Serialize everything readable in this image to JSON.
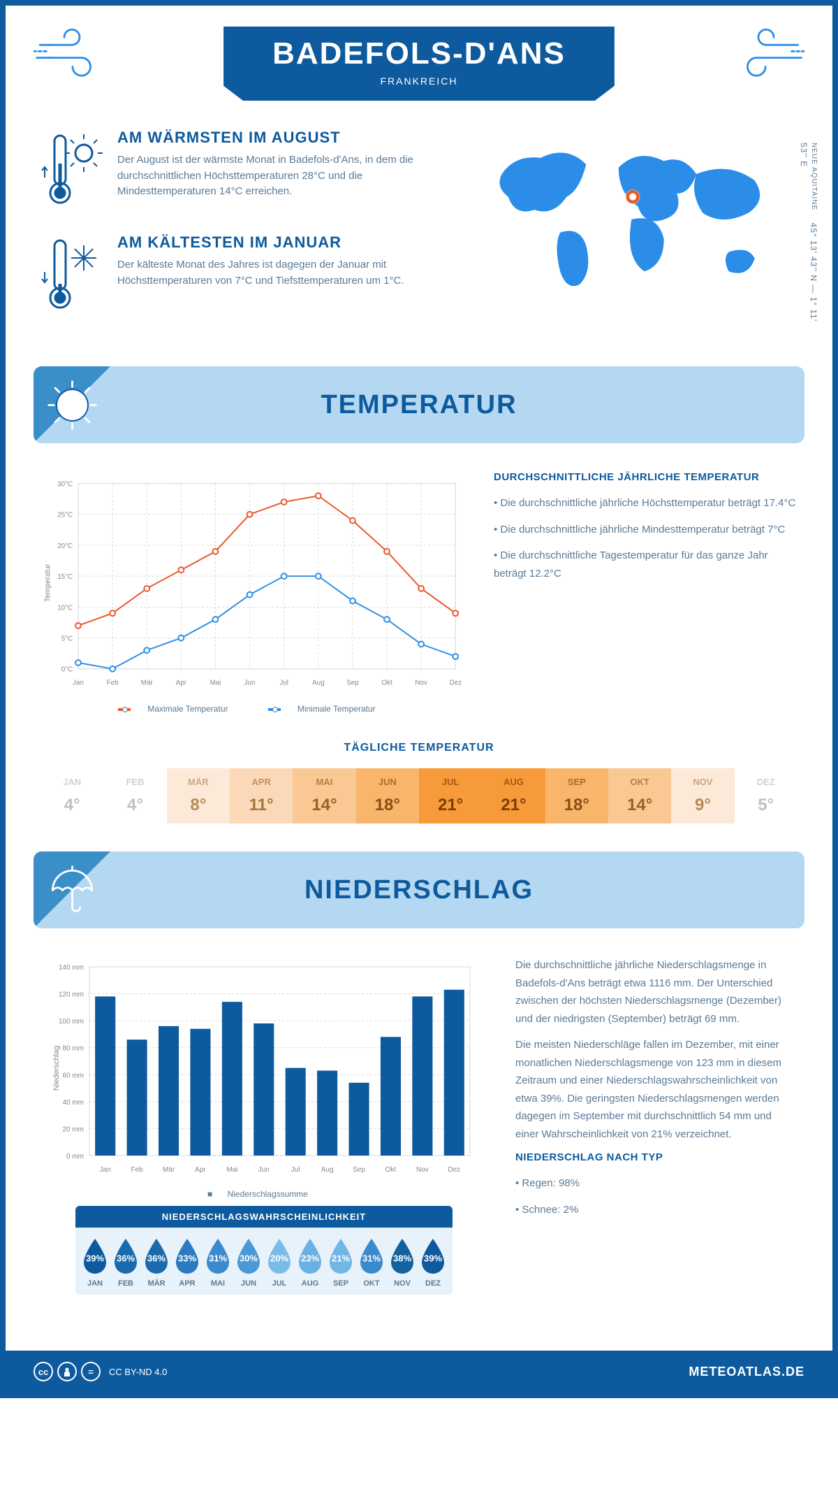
{
  "header": {
    "title": "BADEFOLS-D'ANS",
    "subtitle": "FRANKREICH"
  },
  "coords": {
    "lat": "45° 13' 43'' N — 1° 11' 53'' E",
    "region": "NEUE AQUITAINE"
  },
  "warmest": {
    "title": "AM WÄRMSTEN IM AUGUST",
    "text": "Der August ist der wärmste Monat in Badefols-d'Ans, in dem die durchschnittlichen Höchsttemperaturen 28°C und die Mindesttemperaturen 14°C erreichen."
  },
  "coldest": {
    "title": "AM KÄLTESTEN IM JANUAR",
    "text": "Der kälteste Monat des Jahres ist dagegen der Januar mit Höchsttemperaturen von 7°C und Tiefsttemperaturen um 1°C."
  },
  "temperature_section": {
    "title": "TEMPERATUR",
    "side_title": "DURCHSCHNITTLICHE JÄHRLICHE TEMPERATUR",
    "bullets": [
      "• Die durchschnittliche jährliche Höchsttemperatur beträgt 17.4°C",
      "• Die durchschnittliche jährliche Mindesttemperatur beträgt 7°C",
      "• Die durchschnittliche Tagestemperatur für das ganze Jahr beträgt 12.2°C"
    ],
    "chart": {
      "type": "line",
      "months": [
        "Jan",
        "Feb",
        "Mär",
        "Apr",
        "Mai",
        "Jun",
        "Jul",
        "Aug",
        "Sep",
        "Okt",
        "Nov",
        "Dez"
      ],
      "max": [
        7,
        9,
        13,
        16,
        19,
        25,
        27,
        28,
        24,
        19,
        13,
        9
      ],
      "min": [
        1,
        0,
        3,
        5,
        8,
        12,
        15,
        15,
        11,
        8,
        4,
        2
      ],
      "ylim": [
        0,
        30
      ],
      "ytick_step": 5,
      "max_color": "#e8592b",
      "min_color": "#2b8de8",
      "grid_color": "#d8d8d8",
      "y_axis_label": "Temperatur",
      "legend_max": "Maximale Temperatur",
      "legend_min": "Minimale Temperatur"
    },
    "daily_title": "TÄGLICHE TEMPERATUR",
    "daily": {
      "months": [
        "JAN",
        "FEB",
        "MÄR",
        "APR",
        "MAI",
        "JUN",
        "JUL",
        "AUG",
        "SEP",
        "OKT",
        "NOV",
        "DEZ"
      ],
      "values": [
        "4°",
        "4°",
        "8°",
        "11°",
        "14°",
        "18°",
        "21°",
        "21°",
        "18°",
        "14°",
        "9°",
        "5°"
      ],
      "bg_colors": [
        "#ffffff",
        "#ffffff",
        "#fce9d8",
        "#fbd9b8",
        "#fac893",
        "#f9b56b",
        "#f79a3a",
        "#f79a3a",
        "#f9b56b",
        "#fac893",
        "#fce9d8",
        "#ffffff"
      ],
      "text_colors": [
        "#c0c0c0",
        "#c0c0c0",
        "#b88a5a",
        "#a8743d",
        "#9a6026",
        "#8a4f15",
        "#7a3f05",
        "#7a3f05",
        "#8a4f15",
        "#9a6026",
        "#b88a5a",
        "#c0c0c0"
      ]
    }
  },
  "precip_section": {
    "title": "NIEDERSCHLAG",
    "chart": {
      "type": "bar",
      "months": [
        "Jan",
        "Feb",
        "Mär",
        "Apr",
        "Mai",
        "Jun",
        "Jul",
        "Aug",
        "Sep",
        "Okt",
        "Nov",
        "Dez"
      ],
      "values": [
        118,
        86,
        96,
        94,
        114,
        98,
        65,
        63,
        54,
        88,
        118,
        123
      ],
      "ylim": [
        0,
        140
      ],
      "ytick_step": 20,
      "bar_color": "#0d5a9e",
      "grid_color": "#d8d8d8",
      "y_axis_label": "Niederschlag",
      "legend": "Niederschlagssumme"
    },
    "text1": "Die durchschnittliche jährliche Niederschlagsmenge in Badefols-d'Ans beträgt etwa 1116 mm. Der Unterschied zwischen der höchsten Niederschlagsmenge (Dezember) und der niedrigsten (September) beträgt 69 mm.",
    "text2": "Die meisten Niederschläge fallen im Dezember, mit einer monatlichen Niederschlagsmenge von 123 mm in diesem Zeitraum und einer Niederschlagswahrscheinlichkeit von etwa 39%. Die geringsten Niederschlagsmengen werden dagegen im September mit durchschnittlich 54 mm und einer Wahrscheinlichkeit von 21% verzeichnet.",
    "type_title": "NIEDERSCHLAG NACH TYP",
    "type_bullets": [
      "• Regen: 98%",
      "• Schnee: 2%"
    ],
    "prob_title": "NIEDERSCHLAGSWAHRSCHEINLICHKEIT",
    "prob": {
      "months": [
        "JAN",
        "FEB",
        "MÄR",
        "APR",
        "MAI",
        "JUN",
        "JUL",
        "AUG",
        "SEP",
        "OKT",
        "NOV",
        "DEZ"
      ],
      "values": [
        "39%",
        "36%",
        "36%",
        "33%",
        "31%",
        "30%",
        "20%",
        "23%",
        "21%",
        "31%",
        "38%",
        "39%"
      ],
      "colors": [
        "#0d5a9e",
        "#1a6aae",
        "#1a6aae",
        "#2b7abf",
        "#3b8acd",
        "#4a98d8",
        "#7abce8",
        "#6ab0e2",
        "#72b6e5",
        "#3b8acd",
        "#12629f",
        "#0d5a9e"
      ]
    }
  },
  "footer": {
    "license": "CC BY-ND 4.0",
    "brand": "METEOATLAS.DE"
  }
}
